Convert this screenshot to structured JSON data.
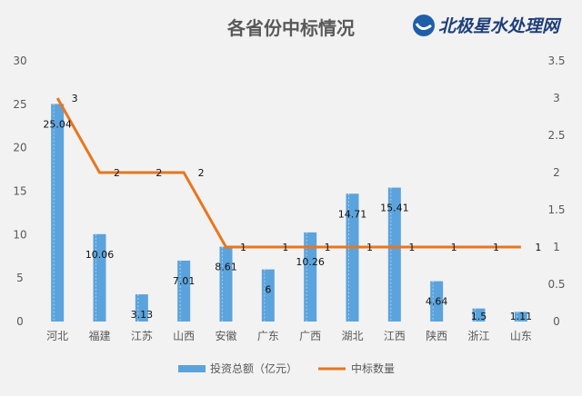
{
  "chart_data": {
    "type": "bar+line",
    "title": "各省份中标情况",
    "categories": [
      "河北",
      "福建",
      "江苏",
      "山西",
      "安徽",
      "广东",
      "广西",
      "湖北",
      "江西",
      "陕西",
      "浙江",
      "山东"
    ],
    "series": [
      {
        "name": "投资总额（亿元）",
        "type": "bar",
        "axis": "left",
        "color": "#5ba3dc",
        "values": [
          25.04,
          10.06,
          3.13,
          7.01,
          8.61,
          6,
          10.26,
          14.71,
          15.41,
          4.64,
          1.5,
          1.11
        ]
      },
      {
        "name": "中标数量",
        "type": "line",
        "axis": "right",
        "color": "#e8761e",
        "values": [
          3,
          2,
          2,
          2,
          1,
          1,
          1,
          1,
          1,
          1,
          1,
          1
        ]
      }
    ],
    "y_left": {
      "range": [
        0,
        30
      ],
      "ticks": [
        "0",
        "5",
        "10",
        "15",
        "20",
        "25",
        "30"
      ]
    },
    "y_right": {
      "range": [
        0,
        3.5
      ],
      "ticks": [
        "0",
        "0.5",
        "1",
        "1.5",
        "2",
        "2.5",
        "3",
        "3.5"
      ]
    },
    "grid": false,
    "legend": "bottom"
  },
  "logo_text": "北极星水处理网"
}
